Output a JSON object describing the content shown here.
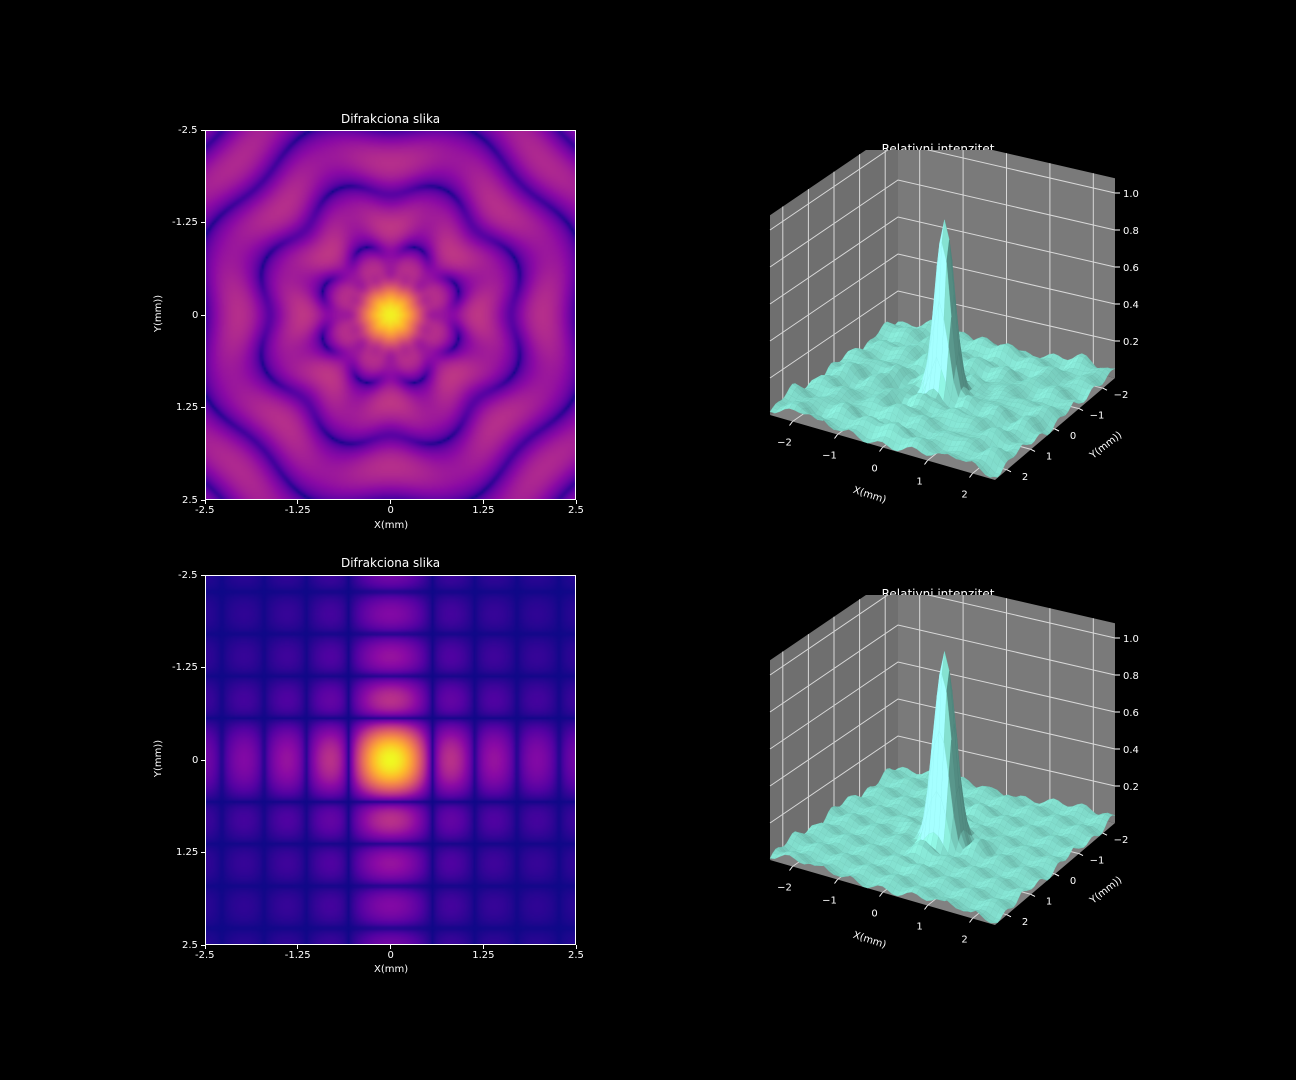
{
  "chart_data": [
    {
      "type": "heatmap",
      "title": "Difrakciona slika",
      "xlabel": "X(mm)",
      "ylabel": "Y(mm))",
      "xlim": [
        -2.5,
        2.5
      ],
      "ylim": [
        -2.5,
        2.5
      ],
      "x_ticks": [
        "-2.5",
        "-1.25",
        "0",
        "1.25",
        "2.5"
      ],
      "y_ticks": [
        "-2.5",
        "-1.25",
        "0",
        "1.25",
        "2.5"
      ],
      "pattern": "circular-aperture",
      "colormap": "plasma",
      "peak": 1.0
    },
    {
      "type": "surface3d",
      "title": "Relativni intenzitet",
      "xlabel": "X(mm)",
      "ylabel": "Y(mm))",
      "x_ticks": [
        "−2",
        "−1",
        "0",
        "1",
        "2"
      ],
      "y_ticks": [
        "−2",
        "−1",
        "0",
        "1",
        "2"
      ],
      "z_ticks": [
        "0.2",
        "0.4",
        "0.6",
        "0.8",
        "1.0"
      ],
      "xlim": [
        -2.5,
        2.5
      ],
      "ylim": [
        -2.5,
        2.5
      ],
      "zlim": [
        0,
        1.0
      ],
      "surface_color": "#7fd8c8",
      "pane_color": "#6f6f6f",
      "grid": true
    },
    {
      "type": "heatmap",
      "title": "Difrakciona slika",
      "xlabel": "X(mm)",
      "ylabel": "Y(mm))",
      "xlim": [
        -2.5,
        2.5
      ],
      "ylim": [
        -2.5,
        2.5
      ],
      "x_ticks": [
        "-2.5",
        "-1.25",
        "0",
        "1.25",
        "2.5"
      ],
      "y_ticks": [
        "-2.5",
        "-1.25",
        "0",
        "1.25",
        "2.5"
      ],
      "pattern": "square-aperture",
      "colormap": "plasma",
      "peak": 1.0
    },
    {
      "type": "surface3d",
      "title": "Relativni intenzitet",
      "xlabel": "X(mm)",
      "ylabel": "Y(mm))",
      "x_ticks": [
        "−2",
        "−1",
        "0",
        "1",
        "2"
      ],
      "y_ticks": [
        "−2",
        "−1",
        "0",
        "1",
        "2"
      ],
      "z_ticks": [
        "0.2",
        "0.4",
        "0.6",
        "0.8",
        "1.0"
      ],
      "xlim": [
        -2.5,
        2.5
      ],
      "ylim": [
        -2.5,
        2.5
      ],
      "zlim": [
        0,
        1.0
      ],
      "surface_color": "#7fd8c8",
      "pane_color": "#6f6f6f",
      "grid": true
    }
  ]
}
